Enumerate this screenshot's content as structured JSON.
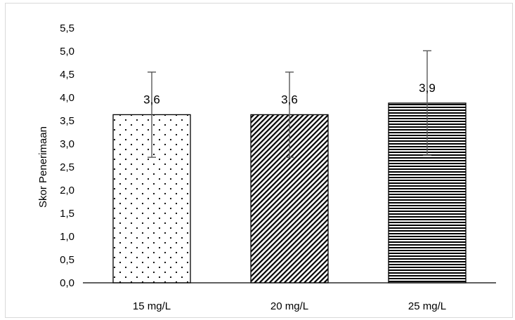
{
  "chart_data": {
    "type": "bar",
    "categories": [
      "15 mg/L",
      "20 mg/L",
      "25 mg/L"
    ],
    "values": [
      3.63,
      3.63,
      3.88
    ],
    "data_labels": [
      "3,6",
      "3,6",
      "3,9"
    ],
    "error_bars": [
      0.92,
      0.92,
      1.13
    ],
    "ylabel": "Skor Penerimaan",
    "ylim": [
      0,
      5.5
    ],
    "yticks": [
      "0,0",
      "0,5",
      "1,0",
      "1,5",
      "2,0",
      "2,5",
      "3,0",
      "3,5",
      "4,0",
      "4,5",
      "5,0",
      "5,5"
    ],
    "patterns": [
      "dots",
      "diagonal-stripes",
      "horizontal-stripes"
    ],
    "grid": false,
    "legend": "none",
    "colors": {
      "bar_outline": "#000000",
      "error_bar": "#595959",
      "axis": "#000000"
    }
  }
}
